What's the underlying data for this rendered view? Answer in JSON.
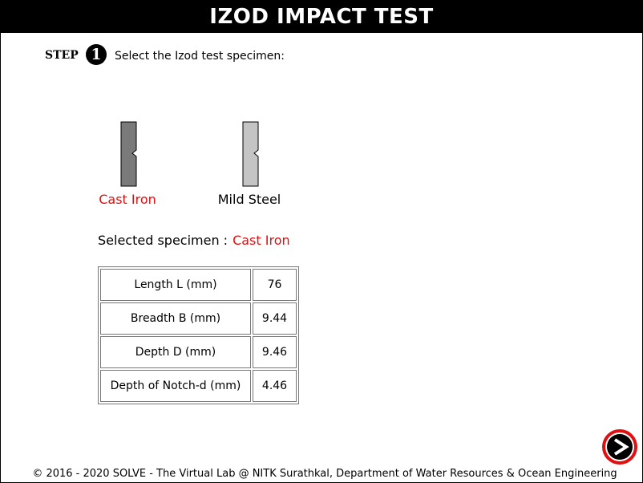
{
  "header": {
    "title": "IZOD IMPACT TEST"
  },
  "step": {
    "label": "STEP",
    "number": "1",
    "instruction": "Select the Izod test specimen:"
  },
  "specimens": [
    {
      "label": "Cast Iron",
      "color": "#7a7a7a",
      "selected": true
    },
    {
      "label": "Mild Steel",
      "color": "#c4c4c4",
      "selected": false
    }
  ],
  "selection": {
    "label": "Selected specimen :",
    "value": "Cast Iron"
  },
  "dimensions": [
    {
      "name": "Length L (mm)",
      "value": "76"
    },
    {
      "name": "Breadth B (mm)",
      "value": "9.44"
    },
    {
      "name": "Depth D (mm)",
      "value": "9.46"
    },
    {
      "name": "Depth of Notch-d (mm)",
      "value": "4.46"
    }
  ],
  "next_button": {
    "icon": "arrow-right-icon"
  },
  "footer": {
    "text": "© 2016 - 2020 SOLVE - The Virtual Lab @ NITK Surathkal, Department of Water Resources & Ocean Engineering"
  },
  "colors": {
    "accent": "#e01010",
    "header_bg": "#000000"
  }
}
